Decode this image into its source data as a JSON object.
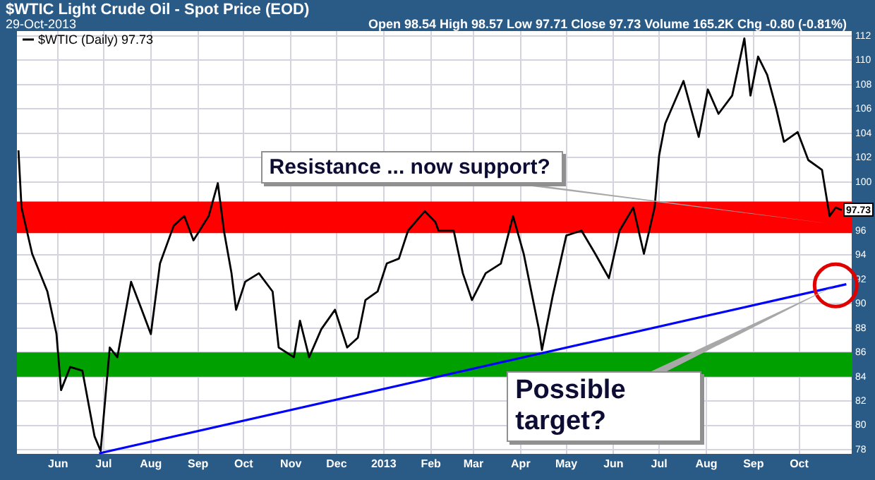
{
  "chart_data": {
    "type": "line",
    "title": "$WTIC Light Crude Oil - Spot Price (EOD)",
    "subtitle": "29-Oct-2013",
    "annotations": [
      "Open 98.54 High 98.57 Low 97.71 Close 97.73 Volume 165.2K Chg -0.80 (-0.81%)",
      {
        "text": "Resistance ... now support?",
        "x": "2013-10-20",
        "y": 96.6
      },
      {
        "text": "Possible target?",
        "x": "2013-10-25",
        "y": 91.5
      },
      {
        "text": "97.73",
        "x": "2013-10-29",
        "y": 97.73
      }
    ],
    "series": [
      {
        "name": "$WTIC (Daily) 97.73",
        "color": "#000000",
        "x": [
          "2012-05-06",
          "2012-05-08",
          "2012-05-15",
          "2012-05-25",
          "2012-05-31",
          "2012-06-03",
          "2012-06-09",
          "2012-06-17",
          "2012-06-25",
          "2012-06-29",
          "2012-07-05",
          "2012-07-10",
          "2012-07-19",
          "2012-07-26",
          "2012-08-01",
          "2012-08-07",
          "2012-08-16",
          "2012-08-23",
          "2012-08-29",
          "2012-09-08",
          "2012-09-14",
          "2012-09-18",
          "2012-09-23",
          "2012-09-26",
          "2012-10-02",
          "2012-10-11",
          "2012-10-20",
          "2012-10-24",
          "2012-11-03",
          "2012-11-07",
          "2012-11-13",
          "2012-11-21",
          "2012-11-30",
          "2012-12-08",
          "2012-12-15",
          "2012-12-20",
          "2012-12-28",
          "2013-01-03",
          "2013-01-11",
          "2013-01-17",
          "2013-01-28",
          "2013-02-04",
          "2013-02-06",
          "2013-02-16",
          "2013-02-22",
          "2013-02-28",
          "2013-03-09",
          "2013-03-19",
          "2013-03-27",
          "2013-04-03",
          "2013-04-13",
          "2013-04-15",
          "2013-04-22",
          "2013-05-01",
          "2013-05-11",
          "2013-05-20",
          "2013-05-29",
          "2013-06-05",
          "2013-06-14",
          "2013-06-21",
          "2013-06-28",
          "2013-07-01",
          "2013-07-05",
          "2013-07-17",
          "2013-07-27",
          "2013-08-02",
          "2013-08-09",
          "2013-08-18",
          "2013-08-26",
          "2013-08-30",
          "2013-09-04",
          "2013-09-10",
          "2013-09-16",
          "2013-09-21",
          "2013-09-30",
          "2013-10-07",
          "2013-10-16",
          "2013-10-21",
          "2013-10-25",
          "2013-10-29"
        ],
        "values": [
          102.6,
          97.9,
          94.1,
          91.0,
          87.5,
          82.9,
          84.8,
          84.5,
          79.1,
          77.9,
          86.4,
          85.6,
          91.8,
          89.5,
          87.5,
          93.3,
          96.4,
          97.2,
          95.2,
          97.2,
          99.9,
          96.0,
          92.5,
          89.5,
          91.8,
          92.5,
          91.0,
          86.4,
          85.6,
          88.6,
          85.6,
          87.9,
          89.5,
          86.4,
          87.2,
          90.3,
          91.0,
          93.3,
          93.7,
          96.0,
          97.6,
          96.7,
          96.0,
          96.0,
          92.5,
          90.3,
          92.5,
          93.3,
          97.2,
          94.1,
          87.9,
          86.2,
          90.6,
          95.6,
          96.0,
          94.1,
          92.1,
          96.0,
          97.9,
          94.1,
          97.9,
          102.2,
          104.8,
          108.3,
          103.7,
          107.6,
          105.6,
          107.1,
          111.8,
          107.1,
          110.3,
          108.8,
          106.0,
          103.3,
          104.1,
          101.8,
          101.0,
          97.2,
          97.9,
          97.7
        ]
      },
      {
        "type": "line",
        "color": "#0000ff",
        "x": [
          "2012-06-28",
          "2013-11-01"
        ],
        "values": [
          77.7,
          91.6
        ]
      }
    ],
    "bands": [
      {
        "axis": "y",
        "from": 95.8,
        "to": 98.4,
        "color": "#ff0000"
      },
      {
        "axis": "y",
        "from": 84,
        "to": 86,
        "color": "#00a000"
      }
    ],
    "xlim": [
      "2012-05-05",
      "2013-11-05"
    ],
    "xticks": [
      {
        "value": "2012-06",
        "label": "Jun"
      },
      {
        "value": "2012-07",
        "label": "Jul"
      },
      {
        "value": "2012-08",
        "label": "Aug"
      },
      {
        "value": "2012-09",
        "label": "Sep"
      },
      {
        "value": "2012-10",
        "label": "Oct"
      },
      {
        "value": "2012-11",
        "label": "Nov"
      },
      {
        "value": "2012-12",
        "label": "Dec"
      },
      {
        "value": "2013-01",
        "label": "2013"
      },
      {
        "value": "2013-02",
        "label": "Feb"
      },
      {
        "value": "2013-03",
        "label": "Mar"
      },
      {
        "value": "2013-04",
        "label": "Apr"
      },
      {
        "value": "2013-05",
        "label": "May"
      },
      {
        "value": "2013-06",
        "label": "Jun"
      },
      {
        "value": "2013-07",
        "label": "Jul"
      },
      {
        "value": "2013-08",
        "label": "Aug"
      },
      {
        "value": "2013-09",
        "label": "Sep"
      },
      {
        "value": "2013-10",
        "label": "Oct"
      }
    ],
    "ylim": [
      77.6,
      112.4
    ],
    "yticks": [
      78,
      80,
      82,
      84,
      86,
      88,
      90,
      92,
      94,
      96,
      100,
      102,
      104,
      106,
      108,
      110,
      112
    ],
    "grid": true,
    "legend": "top left",
    "line_style": "solid"
  }
}
